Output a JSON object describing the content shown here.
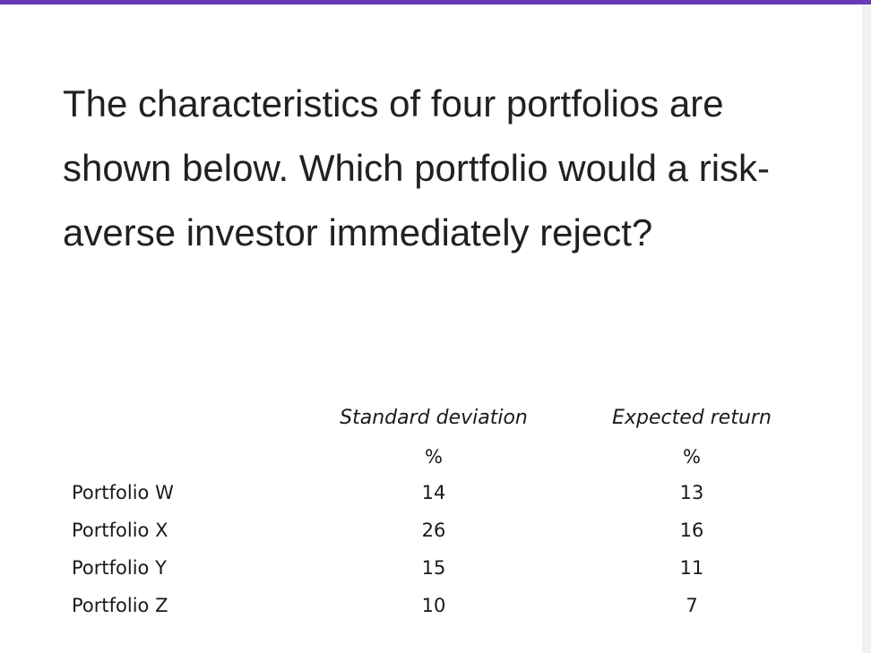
{
  "question": {
    "text": "The characteristics of four portfolios are shown below. Which portfolio would a risk-averse investor immediately reject?"
  },
  "table": {
    "headers": [
      "Standard deviation",
      "Expected return"
    ],
    "units": [
      "%",
      "%"
    ],
    "rows": [
      {
        "label": "Portfolio W",
        "std_dev": "14",
        "expected_return": "13"
      },
      {
        "label": "Portfolio X",
        "std_dev": "26",
        "expected_return": "16"
      },
      {
        "label": "Portfolio Y",
        "std_dev": "15",
        "expected_return": "11"
      },
      {
        "label": "Portfolio Z",
        "std_dev": "10",
        "expected_return": "7"
      }
    ]
  },
  "colors": {
    "accent_bar": "#673ab7",
    "text": "#202124"
  }
}
